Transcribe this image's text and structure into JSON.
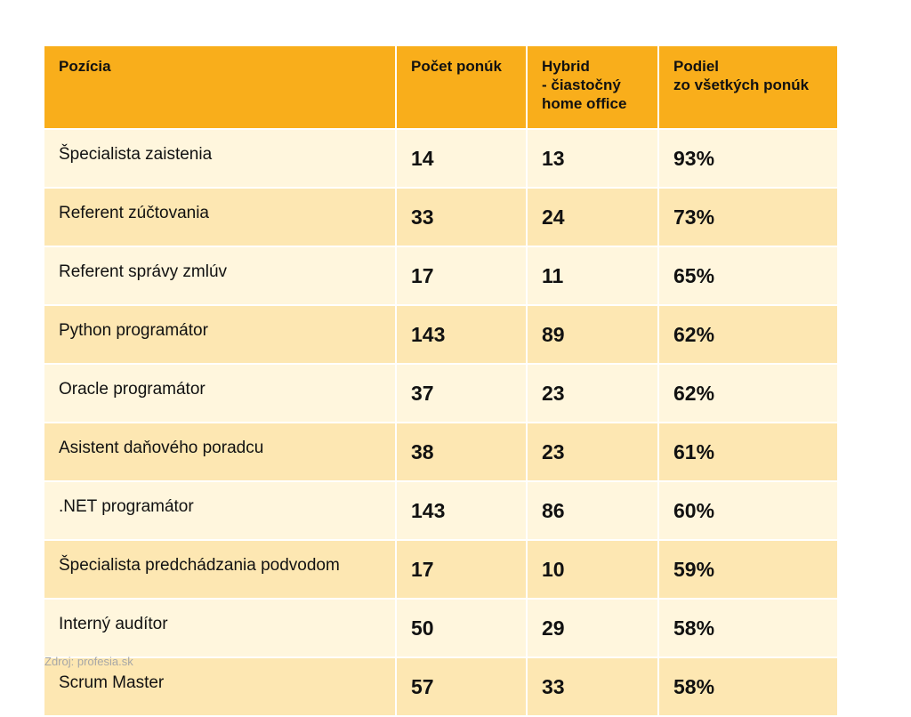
{
  "chart_data": {
    "type": "table",
    "columns": [
      "Pozícia",
      "Počet ponúk",
      "Hybrid\n- čiastočný\nhome office",
      "Podiel\nzo všetkých ponúk"
    ],
    "rows": [
      {
        "position": "Špecialista zaistenia",
        "count": "14",
        "hybrid": "13",
        "share": "93%"
      },
      {
        "position": "Referent zúčtovania",
        "count": "33",
        "hybrid": "24",
        "share": "73%"
      },
      {
        "position": "Referent správy zmlúv",
        "count": "17",
        "hybrid": "11",
        "share": "65%"
      },
      {
        "position": "Python programátor",
        "count": "143",
        "hybrid": "89",
        "share": "62%"
      },
      {
        "position": "Oracle programátor",
        "count": "37",
        "hybrid": "23",
        "share": "62%"
      },
      {
        "position": "Asistent daňového poradcu",
        "count": "38",
        "hybrid": "23",
        "share": "61%"
      },
      {
        "position": ".NET programátor",
        "count": "143",
        "hybrid": "86",
        "share": "60%"
      },
      {
        "position": "Špecialista predchádzania podvodom",
        "count": "17",
        "hybrid": "10",
        "share": "59%"
      },
      {
        "position": "Interný audítor",
        "count": "50",
        "hybrid": "29",
        "share": "58%"
      },
      {
        "position": "Scrum Master",
        "count": "57",
        "hybrid": "33",
        "share": "58%"
      }
    ],
    "source": "Zdroj: profesia.sk"
  },
  "colors": {
    "header_bg": "#f9ae1b",
    "row_light": "#fff6dd",
    "row_dark": "#fde7b2"
  }
}
